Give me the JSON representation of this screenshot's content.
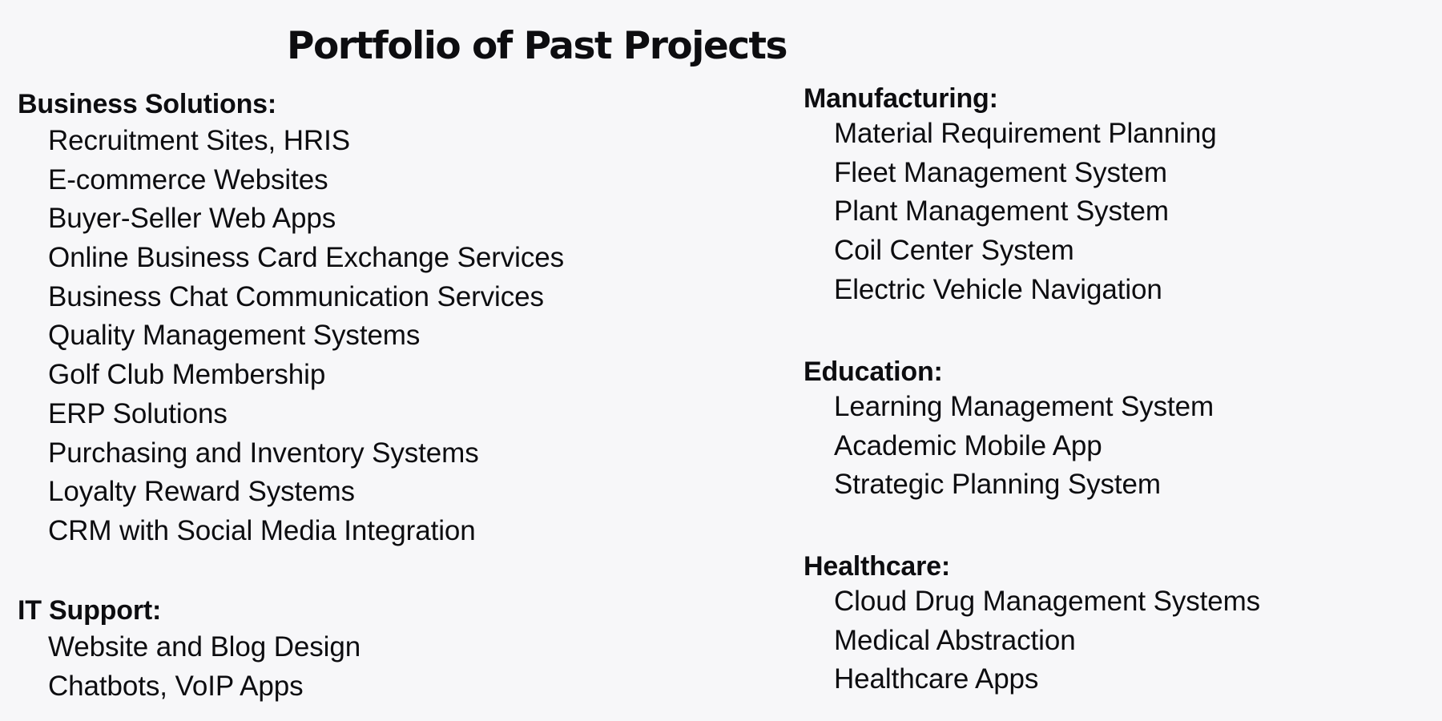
{
  "title": "Portfolio of Past Projects",
  "left_column": {
    "business_solutions": {
      "heading": "Business Solutions:",
      "items": [
        "Recruitment Sites, HRIS",
        "E-commerce Websites",
        "Buyer-Seller Web Apps",
        "Online Business Card Exchange Services",
        "Business Chat Communication Services",
        "Quality Management Systems",
        "Golf Club Membership",
        "ERP Solutions",
        "Purchasing and Inventory Systems",
        "Loyalty Reward Systems",
        "CRM with Social Media Integration"
      ]
    },
    "it_support": {
      "heading": "IT Support:",
      "items": [
        "Website and Blog Design",
        "Chatbots, VoIP Apps"
      ]
    }
  },
  "right_column": {
    "manufacturing": {
      "heading": "Manufacturing:",
      "items": [
        "Material Requirement Planning",
        "Fleet Management System",
        "Plant Management System",
        "Coil Center System",
        "Electric Vehicle Navigation"
      ]
    },
    "education": {
      "heading": "Education:",
      "items": [
        "Learning Management System",
        "Academic Mobile App",
        "Strategic Planning System"
      ]
    },
    "healthcare": {
      "heading": "Healthcare:",
      "items": [
        "Cloud Drug Management Systems",
        "Medical Abstraction",
        "Healthcare Apps"
      ]
    }
  }
}
